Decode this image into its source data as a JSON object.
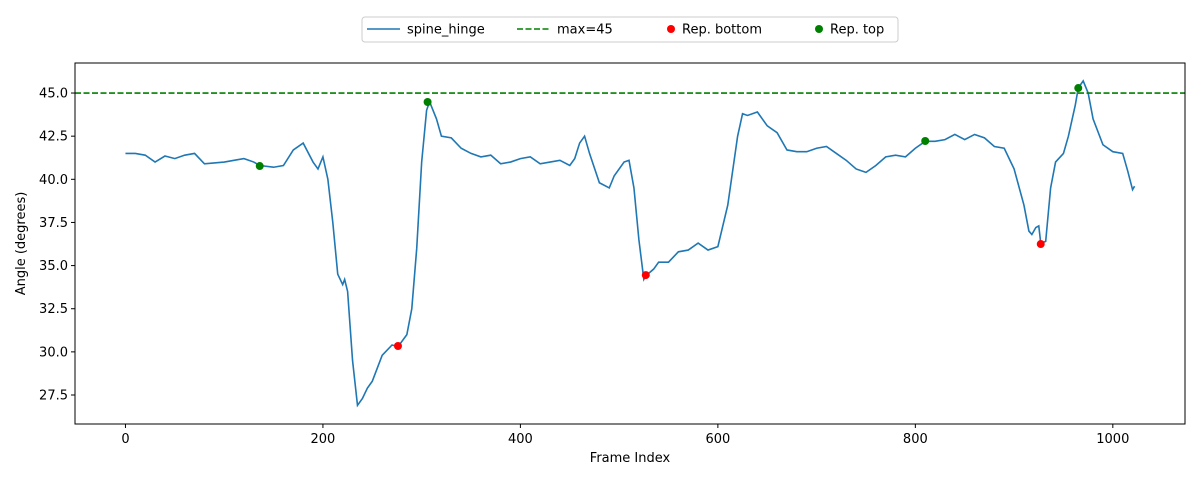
{
  "chart_data": {
    "type": "line",
    "xlabel": "Frame Index",
    "ylabel": "Angle (degrees)",
    "xlim": [
      -51.1,
      1073.1
    ],
    "ylim": [
      25.82,
      46.74
    ],
    "xticks": [
      0,
      200,
      400,
      600,
      800,
      1000
    ],
    "yticks": [
      27.5,
      {
        "value": 30,
        "label": "30.0"
      },
      32.5,
      {
        "value": 35,
        "label": "35.0"
      },
      37.5,
      {
        "value": 40,
        "label": "40.0"
      },
      42.5,
      {
        "value": 45,
        "label": "45.0"
      }
    ],
    "legend": "upper center",
    "series": [
      {
        "name": "spine_hinge",
        "type": "line",
        "color": "#1f77b4",
        "x": [
          0,
          10,
          20,
          30,
          40,
          50,
          60,
          70,
          80,
          90,
          100,
          110,
          120,
          130,
          136,
          150,
          160,
          170,
          180,
          190,
          195,
          200,
          205,
          210,
          215,
          220,
          222,
          225,
          230,
          235,
          240,
          245,
          250,
          260,
          270,
          276,
          285,
          290,
          295,
          300,
          305,
          308,
          315,
          320,
          330,
          340,
          350,
          360,
          370,
          380,
          390,
          400,
          410,
          420,
          430,
          440,
          450,
          455,
          460,
          465,
          470,
          480,
          490,
          495,
          505,
          510,
          515,
          520,
          525,
          527,
          535,
          540,
          550,
          560,
          570,
          580,
          590,
          600,
          610,
          620,
          625,
          630,
          640,
          650,
          660,
          670,
          680,
          690,
          700,
          710,
          720,
          730,
          740,
          750,
          760,
          770,
          780,
          790,
          800,
          810,
          820,
          830,
          840,
          850,
          860,
          870,
          880,
          890,
          900,
          910,
          915,
          918,
          922,
          925,
          927,
          932,
          937,
          942,
          950,
          955,
          962,
          965,
          970,
          975,
          980,
          990,
          1000,
          1010,
          1015,
          1020,
          1022
        ],
        "values": [
          41.5,
          41.5,
          41.4,
          41.0,
          41.35,
          41.2,
          41.4,
          41.5,
          40.9,
          40.95,
          41.0,
          41.1,
          41.2,
          41.0,
          40.8,
          40.7,
          40.8,
          41.7,
          42.1,
          41.0,
          40.6,
          41.3,
          40.0,
          37.5,
          34.5,
          33.9,
          34.2,
          33.5,
          29.5,
          26.9,
          27.3,
          27.9,
          28.3,
          29.8,
          30.4,
          30.3,
          31.0,
          32.5,
          36.0,
          41.0,
          44.0,
          44.5,
          43.5,
          42.5,
          42.4,
          41.8,
          41.5,
          41.3,
          41.4,
          40.9,
          41.0,
          41.2,
          41.3,
          40.9,
          41.0,
          41.1,
          40.8,
          41.2,
          42.1,
          42.5,
          41.5,
          39.8,
          39.5,
          40.2,
          41.0,
          41.1,
          39.5,
          36.5,
          34.2,
          34.4,
          34.8,
          35.2,
          35.2,
          35.8,
          35.9,
          36.3,
          35.9,
          36.1,
          38.5,
          42.5,
          43.8,
          43.7,
          43.9,
          43.1,
          42.7,
          41.7,
          41.6,
          41.6,
          41.8,
          41.9,
          41.5,
          41.1,
          40.6,
          40.4,
          40.8,
          41.3,
          41.4,
          41.3,
          41.8,
          42.2,
          42.2,
          42.3,
          42.6,
          42.3,
          42.6,
          42.4,
          41.9,
          41.8,
          40.6,
          38.5,
          37.0,
          36.8,
          37.2,
          37.3,
          36.3,
          36.4,
          39.5,
          41.0,
          41.5,
          42.5,
          44.3,
          45.3,
          45.7,
          45.0,
          43.5,
          42.0,
          41.6,
          41.5,
          40.5,
          39.4,
          39.6
        ]
      },
      {
        "name": "Rep. bottom",
        "type": "scatter",
        "color": "red",
        "x": [
          276,
          527,
          927
        ],
        "values": [
          30.34,
          34.45,
          36.25
        ]
      },
      {
        "name": "Rep. top",
        "type": "scatter",
        "color": "green",
        "x": [
          136,
          306,
          810,
          965
        ],
        "values": [
          40.77,
          44.48,
          42.22,
          45.29
        ]
      }
    ],
    "hline": {
      "name": "max=45",
      "value": 45,
      "color": "green",
      "style": "dashed"
    }
  }
}
